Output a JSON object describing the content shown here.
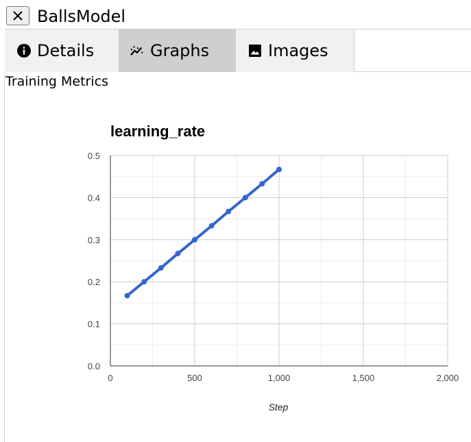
{
  "window": {
    "title": "BallsModel",
    "close_icon": "close-icon"
  },
  "tabs": [
    {
      "label": "Details",
      "icon": "info-icon",
      "active": false
    },
    {
      "label": "Graphs",
      "icon": "line-chart-icon",
      "active": true
    },
    {
      "label": "Images",
      "icon": "image-icon",
      "active": false
    }
  ],
  "section": {
    "label": "Training Metrics"
  },
  "colors": {
    "series": "#3366cc",
    "active_tab": "#cfcfcf",
    "inactive_tab": "#f1f1f1"
  },
  "chart_data": {
    "type": "line",
    "title": "learning_rate",
    "xlabel": "Step",
    "ylabel": "",
    "xlim": [
      0,
      2000
    ],
    "ylim": [
      0,
      0.5
    ],
    "xticks": [
      0,
      500,
      1000,
      1500,
      2000
    ],
    "xtick_labels": [
      "0",
      "500",
      "1,000",
      "1,500",
      "2,000"
    ],
    "yticks": [
      0,
      0.1,
      0.2,
      0.3,
      0.4,
      0.5
    ],
    "ytick_labels": [
      "0.0",
      "0.1",
      "0.2",
      "0.3",
      "0.4",
      "0.5"
    ],
    "grid": true,
    "series": [
      {
        "x": [
          100,
          200,
          300,
          400,
          500,
          600,
          700,
          800,
          900,
          1000
        ],
        "y": [
          0.167,
          0.2,
          0.233,
          0.267,
          0.3,
          0.333,
          0.367,
          0.4,
          0.433,
          0.467
        ]
      }
    ]
  }
}
